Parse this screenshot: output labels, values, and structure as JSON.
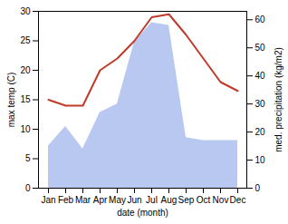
{
  "chart_data": {
    "type": "line",
    "categories": [
      "Jan",
      "Feb",
      "Mar",
      "Apr",
      "May",
      "Jun",
      "Jul",
      "Aug",
      "Sep",
      "Oct",
      "Nov",
      "Dec"
    ],
    "series": [
      {
        "type": "area",
        "axis": "y2",
        "color": "#b8c8f0",
        "values": [
          15,
          22,
          14,
          27,
          30,
          52,
          59,
          58,
          18,
          17,
          17,
          17
        ]
      },
      {
        "type": "line",
        "color": "#c0392b",
        "values": [
          15,
          14,
          14,
          20,
          22,
          25,
          29,
          29.5,
          26,
          22,
          18,
          16.5
        ]
      }
    ],
    "xlabel": "date (month)",
    "ylabel": "max temp (C)",
    "y2label": "med. precipitation (kg/m2)",
    "ylim": [
      0,
      30
    ],
    "yticks": [
      0,
      5,
      10,
      15,
      20,
      25,
      30
    ],
    "y2lim": [
      0,
      63
    ],
    "y2ticks": [
      0,
      10,
      20,
      30,
      40,
      50,
      60
    ]
  }
}
